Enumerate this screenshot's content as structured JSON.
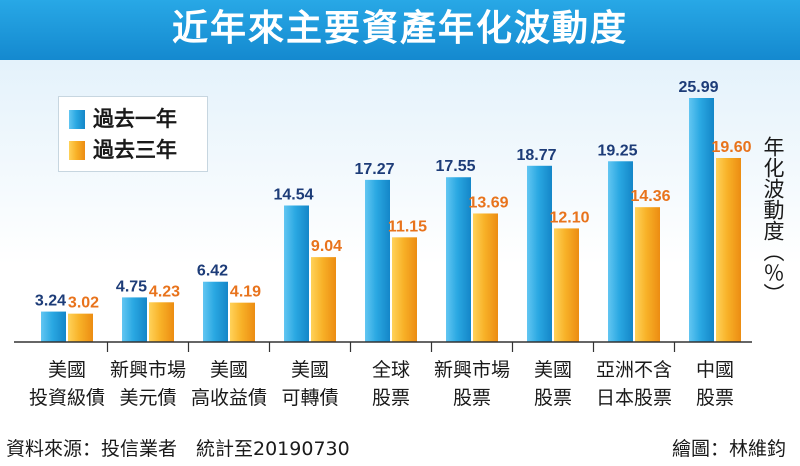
{
  "title": "近年來主要資產年化波動度",
  "legend": [
    {
      "label": "過去一年",
      "color": "#2aa8e2"
    },
    {
      "label": "過去三年",
      "color": "#f5a623"
    }
  ],
  "ylabel": "年化波動度（％）",
  "colors": {
    "title_bar": "#1a95d8",
    "series_one_year": "#2aa8e2",
    "series_three_year": "#f5a623",
    "label_one_year": "#1d3c78",
    "label_three_year": "#e8731c"
  },
  "chart_data": {
    "type": "bar",
    "title": "近年來主要資產年化波動度",
    "ylabel": "年化波動度（％）",
    "categories": [
      [
        "美國",
        "投資級債"
      ],
      [
        "新興市場",
        "美元債"
      ],
      [
        "美國",
        "高收益債"
      ],
      [
        "美國",
        "可轉債"
      ],
      [
        "全球",
        "股票"
      ],
      [
        "新興市場",
        "股票"
      ],
      [
        "美國",
        "股票"
      ],
      [
        "亞洲不含",
        "日本股票"
      ],
      [
        "中國",
        "股票"
      ]
    ],
    "series": [
      {
        "name": "過去一年",
        "values": [
          3.24,
          4.75,
          6.42,
          14.54,
          17.27,
          17.55,
          18.77,
          19.25,
          25.99
        ],
        "labels": [
          "3.24",
          "4.75",
          "6.42",
          "14.54",
          "17.27",
          "17.55",
          "18.77",
          "19.25",
          "25.99"
        ]
      },
      {
        "name": "過去三年",
        "values": [
          3.02,
          4.23,
          4.19,
          9.04,
          11.15,
          13.69,
          12.1,
          14.36,
          19.6
        ],
        "labels": [
          "3.02",
          "4.23",
          "4.19",
          "9.04",
          "11.15",
          "13.69",
          "12.10",
          "14.36",
          "19.60"
        ]
      }
    ],
    "ylim": [
      0,
      25.99
    ],
    "grid": false,
    "legend_position": "top-left"
  },
  "footer": {
    "source": "資料來源：投信業者　統計至20190730",
    "credit": "繪圖：林維鈞"
  }
}
